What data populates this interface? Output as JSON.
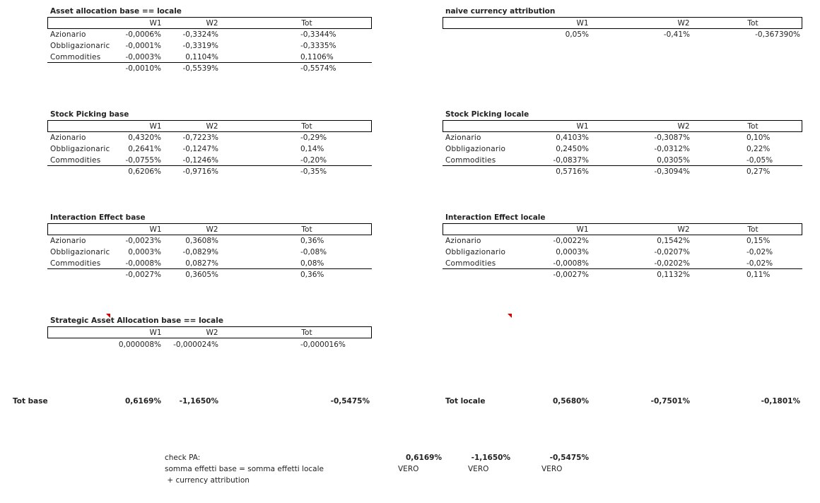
{
  "cols": {
    "w1": "W1",
    "w2": "W2",
    "tot": "Tot"
  },
  "rows": {
    "az": "Azionario",
    "ob_trunc": "Obbligazionaric",
    "ob": "Obbligazionario",
    "co": "Commodities"
  },
  "aa_base": {
    "title": "Asset allocation base == locale",
    "r": [
      [
        "-0,0006%",
        "-0,3324%",
        "-0,3344%"
      ],
      [
        "-0,0001%",
        "-0,3319%",
        "-0,3335%"
      ],
      [
        "-0,0003%",
        "0,1104%",
        "0,1106%"
      ]
    ],
    "total": [
      "-0,0010%",
      "-0,5539%",
      "-0,5574%"
    ]
  },
  "naive": {
    "title": "naive currency attribution",
    "values": [
      "0,05%",
      "-0,41%",
      "-0,367390%"
    ]
  },
  "sp_base": {
    "title": "Stock  Picking base",
    "r": [
      [
        "0,4320%",
        "-0,7223%",
        "-0,29%"
      ],
      [
        "0,2641%",
        "-0,1247%",
        "0,14%"
      ],
      [
        "-0,0755%",
        "-0,1246%",
        "-0,20%"
      ]
    ],
    "total": [
      "0,6206%",
      "-0,9716%",
      "-0,35%"
    ]
  },
  "sp_locale": {
    "title": "Stock  Picking locale",
    "r": [
      [
        "0,4103%",
        "-0,3087%",
        "0,10%"
      ],
      [
        "0,2450%",
        "-0,0312%",
        "0,22%"
      ],
      [
        "-0,0837%",
        "0,0305%",
        "-0,05%"
      ]
    ],
    "total": [
      "0,5716%",
      "-0,3094%",
      "0,27%"
    ]
  },
  "ie_base": {
    "title": "Interaction Effect base",
    "r": [
      [
        "-0,0023%",
        "0,3608%",
        "0,36%"
      ],
      [
        "0,0003%",
        "-0,0829%",
        "-0,08%"
      ],
      [
        "-0,0008%",
        "0,0827%",
        "0,08%"
      ]
    ],
    "total": [
      "-0,0027%",
      "0,3605%",
      "0,36%"
    ]
  },
  "ie_locale": {
    "title": "Interaction Effect locale",
    "r": [
      [
        "-0,0022%",
        "0,1542%",
        "0,15%"
      ],
      [
        "0,0003%",
        "-0,0207%",
        "-0,02%"
      ],
      [
        "-0,0008%",
        "-0,0202%",
        "-0,02%"
      ]
    ],
    "total": [
      "-0,0027%",
      "0,1132%",
      "0,11%"
    ]
  },
  "saa": {
    "title": "Strategic Asset Allocation base == locale",
    "values": [
      "0,000008%",
      "-0,000024%",
      "-0,000016%"
    ]
  },
  "tot_base": {
    "label": "Tot base",
    "values": [
      "0,6169%",
      "-1,1650%",
      "-0,5475%"
    ]
  },
  "tot_locale": {
    "label": "Tot locale",
    "values": [
      "0,5680%",
      "-0,7501%",
      "-0,1801%"
    ]
  },
  "check": {
    "label1": "check PA:",
    "label2": "somma effetti base = somma effetti locale",
    "label3": " + currency attribution",
    "values": [
      "0,6169%",
      "-1,1650%",
      "-0,5475%"
    ],
    "flags": [
      "VERO",
      "VERO",
      "VERO"
    ]
  }
}
